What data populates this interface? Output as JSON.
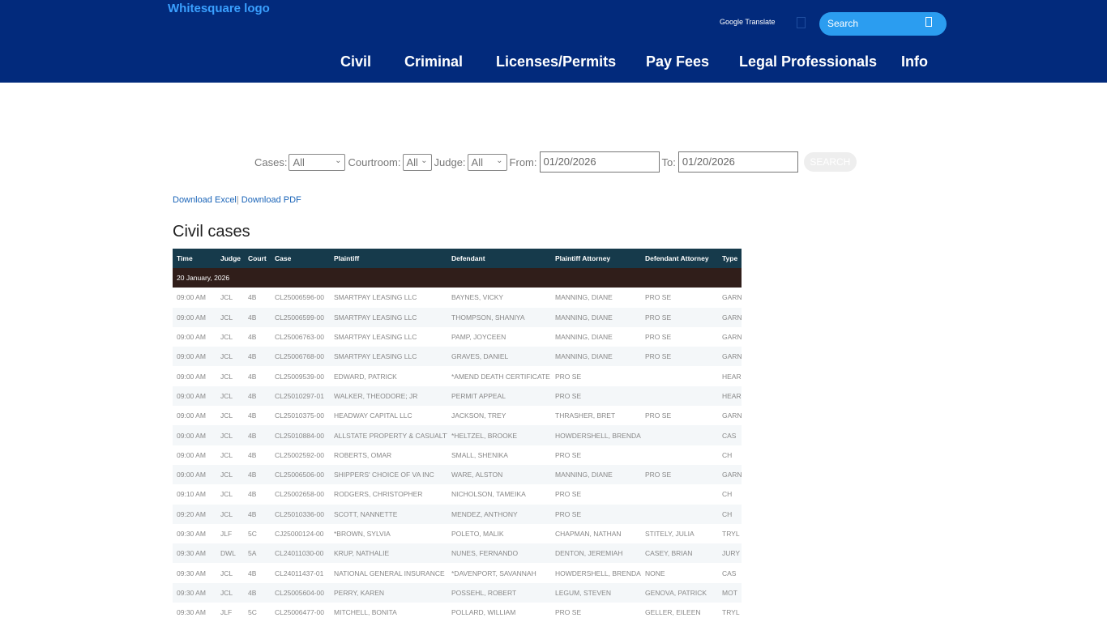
{
  "header": {
    "logo_alt": "Whitesquare logo",
    "google_translate": "Google Translate",
    "search_placeholder": "Search",
    "nav": [
      "Civil",
      "Criminal",
      "Licenses/Permits",
      "Pay Fees",
      "Legal Professionals",
      "Info"
    ]
  },
  "filters": {
    "cases_label": "Cases:",
    "cases_value": "All",
    "courtroom_label": "Courtroom:",
    "courtroom_value": "All",
    "judge_label": "Judge:",
    "judge_value": "All",
    "from_label": "From:",
    "from_value": "01/20/2026",
    "to_label": "To:",
    "to_value": "01/20/2026",
    "search_button": "SEARCH"
  },
  "downloads": {
    "excel": "Download Excel",
    "separator": "|",
    "pdf": "Download PDF"
  },
  "section_title": "Civil cases",
  "table": {
    "columns": [
      "Time",
      "Judge",
      "Court",
      "Case",
      "Plaintiff",
      "Defendant",
      "Plaintiff Attorney",
      "Defendant Attorney",
      "Type"
    ],
    "date_group": "20 January, 2026",
    "rows": [
      [
        "09:00 AM",
        "JCL",
        "4B",
        "CL25006596-00",
        "SMARTPAY LEASING LLC",
        "BAYNES, VICKY",
        "MANNING, DIANE",
        "PRO SE",
        "GARN"
      ],
      [
        "09:00 AM",
        "JCL",
        "4B",
        "CL25006599-00",
        "SMARTPAY LEASING LLC",
        "THOMPSON, SHANIYA",
        "MANNING, DIANE",
        "PRO SE",
        "GARN"
      ],
      [
        "09:00 AM",
        "JCL",
        "4B",
        "CL25006763-00",
        "SMARTPAY LEASING LLC",
        "PAMP, JOYCEEN",
        "MANNING, DIANE",
        "PRO SE",
        "GARN"
      ],
      [
        "09:00 AM",
        "JCL",
        "4B",
        "CL25006768-00",
        "SMARTPAY LEASING LLC",
        "GRAVES, DANIEL",
        "MANNING, DIANE",
        "PRO SE",
        "GARN"
      ],
      [
        "09:00 AM",
        "JCL",
        "4B",
        "CL25009539-00",
        "EDWARD, PATRICK",
        "*AMEND DEATH CERTIFICATE",
        "PRO SE",
        "",
        "HEAR"
      ],
      [
        "09:00 AM",
        "JCL",
        "4B",
        "CL25010297-01",
        "WALKER, THEODORE; JR",
        "PERMIT APPEAL",
        "PRO SE",
        "",
        "HEAR"
      ],
      [
        "09:00 AM",
        "JCL",
        "4B",
        "CL25010375-00",
        "HEADWAY CAPITAL LLC",
        "JACKSON, TREY",
        "THRASHER, BRET",
        "PRO SE",
        "GARN"
      ],
      [
        "09:00 AM",
        "JCL",
        "4B",
        "CL25010884-00",
        "ALLSTATE PROPERTY & CASUALTY",
        "*HELTZEL, BROOKE",
        "HOWDERSHELL, BRENDA",
        "",
        "CAS"
      ],
      [
        "09:00 AM",
        "JCL",
        "4B",
        "CL25002592-00",
        "ROBERTS, OMAR",
        "SMALL, SHENIKA",
        "PRO SE",
        "",
        "CH"
      ],
      [
        "09:00 AM",
        "JCL",
        "4B",
        "CL25006506-00",
        "SHIPPERS' CHOICE OF VA INC",
        "WARE, ALSTON",
        "MANNING, DIANE",
        "PRO SE",
        "GARN"
      ],
      [
        "09:10 AM",
        "JCL",
        "4B",
        "CL25002658-00",
        "RODGERS, CHRISTOPHER",
        "NICHOLSON, TAMEIKA",
        "PRO SE",
        "",
        "CH"
      ],
      [
        "09:20 AM",
        "JCL",
        "4B",
        "CL25010336-00",
        "SCOTT, NANNETTE",
        "MENDEZ, ANTHONY",
        "PRO SE",
        "",
        "CH"
      ],
      [
        "09:30 AM",
        "JLF",
        "5C",
        "CJ25000124-00",
        "*BROWN, SYLVIA",
        "POLETO, MALIK",
        "CHAPMAN, NATHAN",
        "STITELY, JULIA",
        "TRYL"
      ],
      [
        "09:30 AM",
        "DWL",
        "5A",
        "CL24011030-00",
        "KRUP, NATHALIE",
        "NUNES, FERNANDO",
        "DENTON, JEREMIAH",
        "CASEY, BRIAN",
        "JURY"
      ],
      [
        "09:30 AM",
        "JCL",
        "4B",
        "CL24011437-01",
        "NATIONAL GENERAL INSURANCE",
        "*DAVENPORT, SAVANNAH",
        "HOWDERSHELL, BRENDA",
        "NONE",
        "CAS"
      ],
      [
        "09:30 AM",
        "JCL",
        "4B",
        "CL25005604-00",
        "PERRY, KAREN",
        "POSSEHL, ROBERT",
        "LEGUM, STEVEN",
        "GENOVA, PATRICK",
        "MOT"
      ],
      [
        "09:30 AM",
        "JLF",
        "5C",
        "CL25006477-00",
        "MITCHELL, BONITA",
        "POLLARD, WILLIAM",
        "PRO SE",
        "GELLER, EILEEN",
        "TRYL"
      ]
    ]
  }
}
